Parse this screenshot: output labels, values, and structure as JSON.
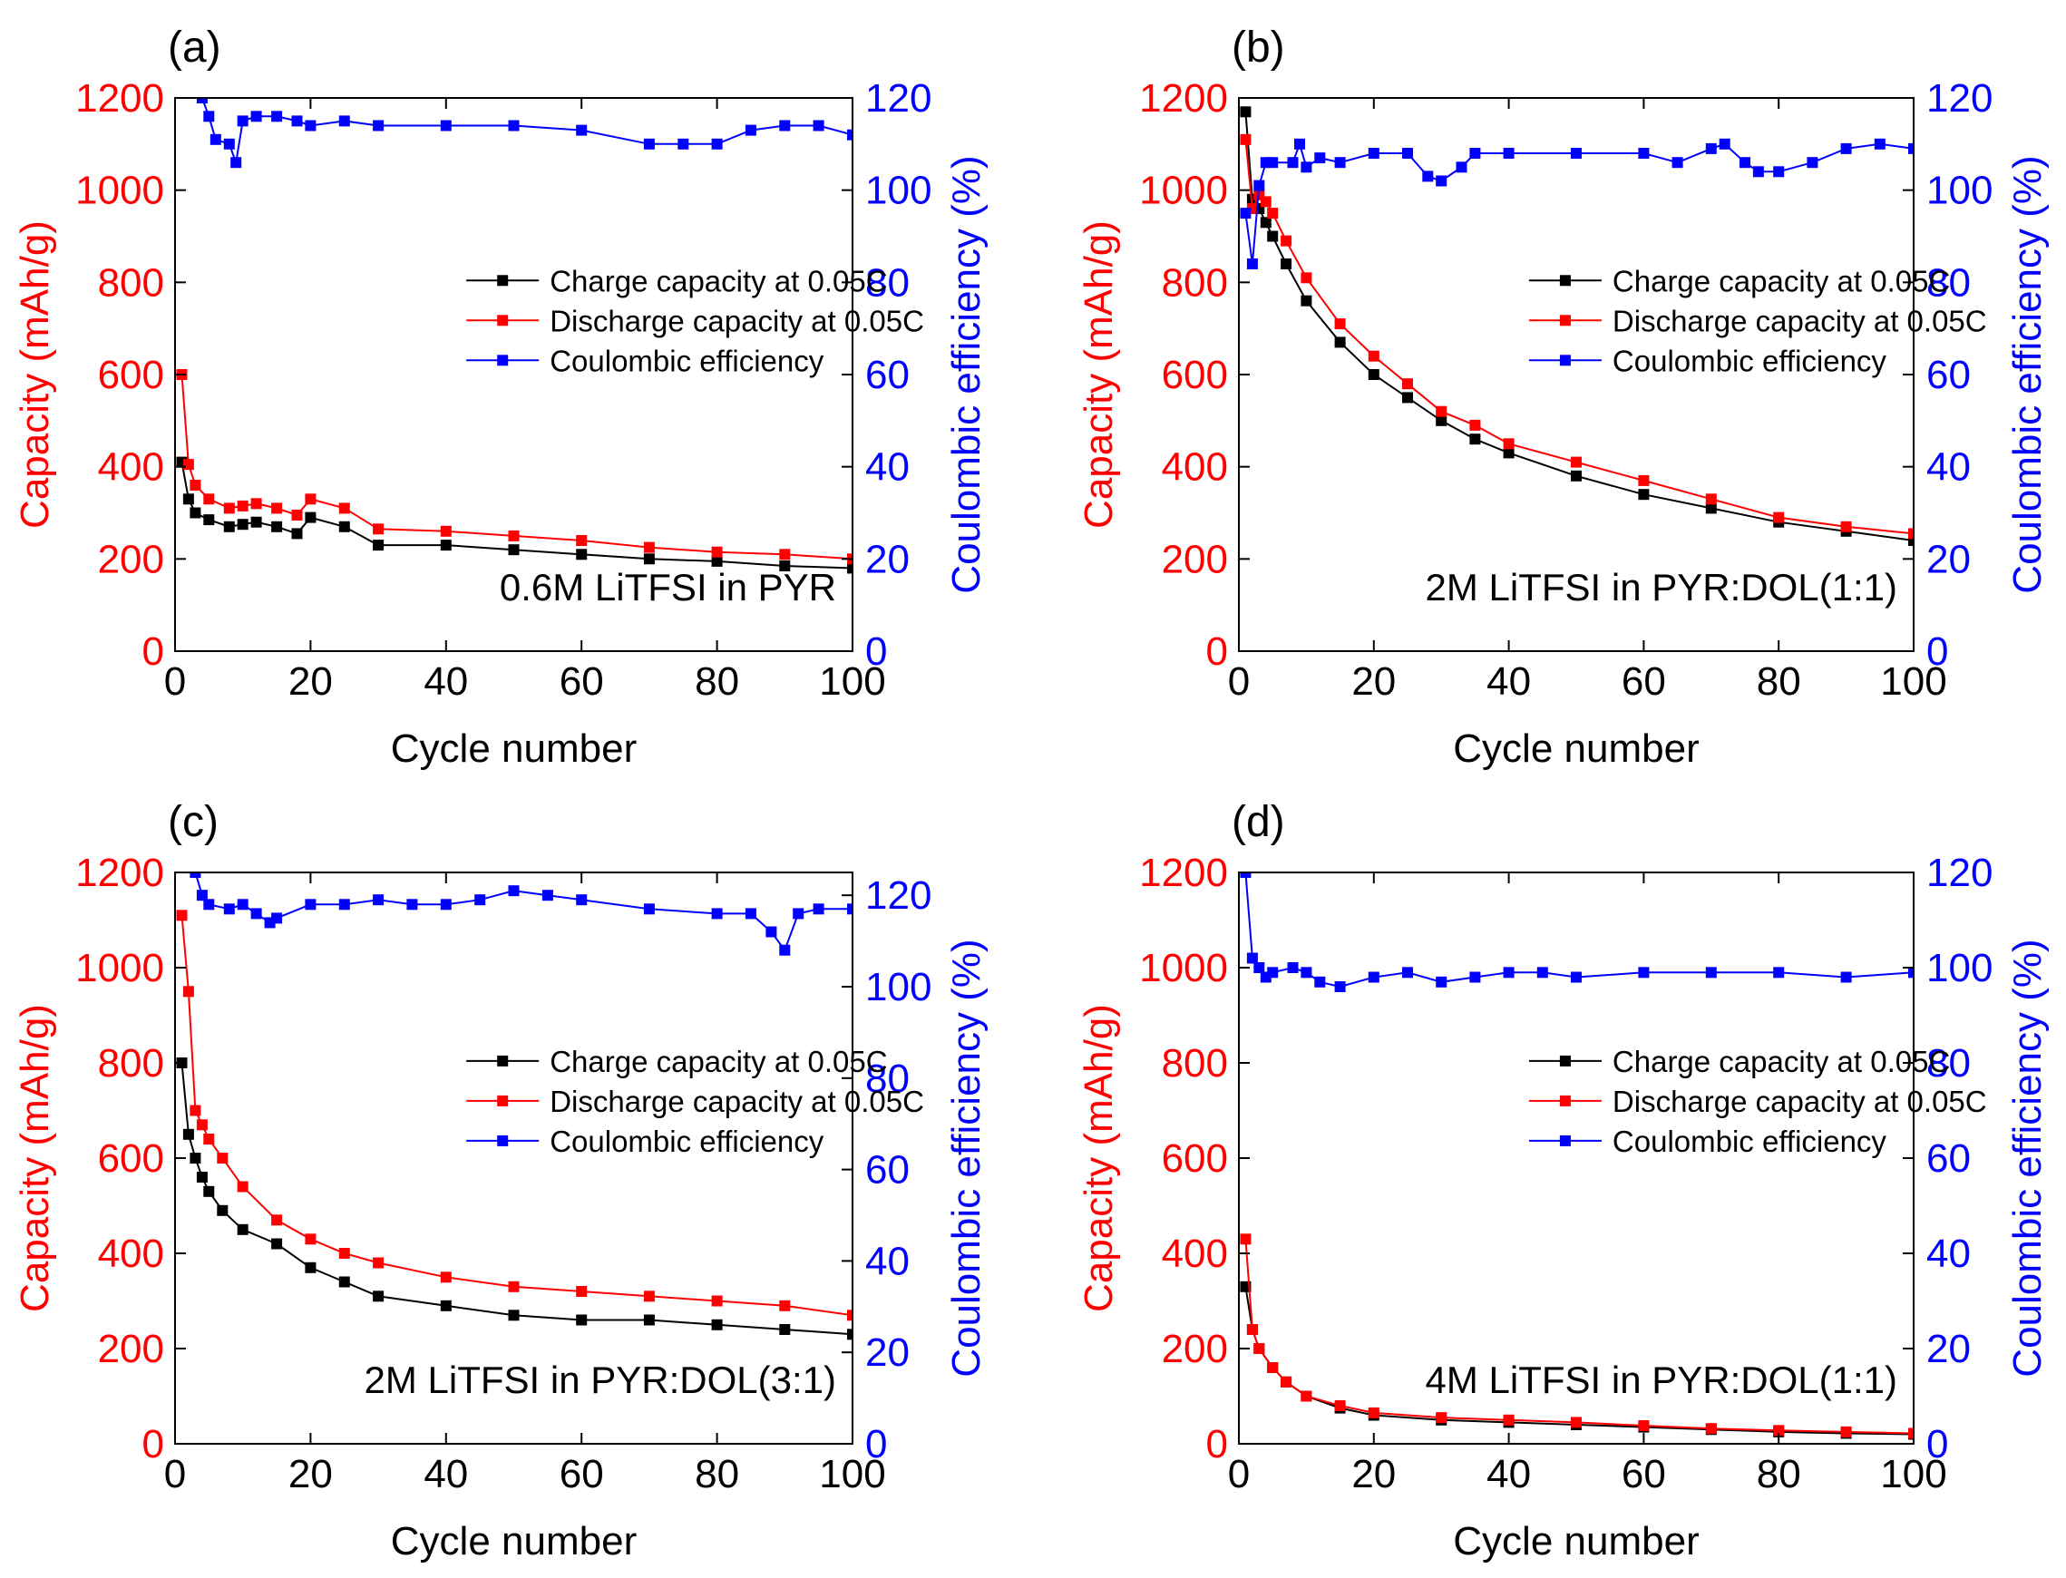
{
  "figure": {
    "colors": {
      "charge": "#000000",
      "discharge": "#ff0000",
      "ce": "#0000ff",
      "axis": "#000000",
      "leftAxis": "#ff0000",
      "rightAxis": "#0000ff"
    }
  },
  "chart_data": [
    {
      "type": "line",
      "panel_label": "(a)",
      "annotation": "0.6M LiTFSI in PYR",
      "xlabel": "Cycle number",
      "ylabel_left": "Capacity (mAh/g)",
      "ylabel_right": "Coulombic efficiency (%)",
      "xlim": [
        0,
        100
      ],
      "ylim_left": [
        0,
        1200
      ],
      "ylim_right": [
        0,
        120
      ],
      "xticks": [
        "0",
        "20",
        "40",
        "60",
        "80",
        "100"
      ],
      "yticks_left": [
        "0",
        "200",
        "400",
        "600",
        "800",
        "1000",
        "1200"
      ],
      "yticks_right": [
        "0",
        "20",
        "40",
        "60",
        "80",
        "100",
        "120"
      ],
      "legend": [
        "Charge capacity at 0.05C",
        "Discharge capacity at 0.05C",
        "Coulombic efficiency"
      ],
      "legend_position": "center-right",
      "series": [
        {
          "name": "Charge capacity at 0.05C",
          "axis": "left",
          "x": [
            1,
            2,
            3,
            5,
            8,
            10,
            12,
            15,
            18,
            20,
            25,
            30,
            40,
            50,
            60,
            70,
            80,
            90,
            100
          ],
          "values": [
            410,
            330,
            300,
            285,
            270,
            275,
            280,
            270,
            255,
            290,
            270,
            230,
            230,
            220,
            210,
            200,
            195,
            185,
            180
          ]
        },
        {
          "name": "Discharge capacity at 0.05C",
          "axis": "left",
          "x": [
            1,
            2,
            3,
            5,
            8,
            10,
            12,
            15,
            18,
            20,
            25,
            30,
            40,
            50,
            60,
            70,
            80,
            90,
            100
          ],
          "values": [
            600,
            405,
            360,
            330,
            310,
            315,
            320,
            310,
            295,
            330,
            310,
            265,
            260,
            250,
            240,
            225,
            215,
            210,
            200
          ]
        },
        {
          "name": "Coulombic efficiency",
          "axis": "right",
          "x": [
            4,
            5,
            6,
            8,
            9,
            10,
            12,
            15,
            18,
            20,
            25,
            30,
            40,
            50,
            60,
            70,
            75,
            80,
            85,
            90,
            95,
            100
          ],
          "values": [
            120,
            116,
            111,
            110,
            106,
            115,
            116,
            116,
            115,
            114,
            115,
            114,
            114,
            114,
            113,
            110,
            110,
            110,
            113,
            114,
            114,
            112
          ]
        }
      ]
    },
    {
      "type": "line",
      "panel_label": "(b)",
      "annotation": "2M LiTFSI in PYR:DOL(1:1)",
      "xlabel": "Cycle number",
      "ylabel_left": "Capacity (mAh/g)",
      "ylabel_right": "Coulombic efficiency (%)",
      "xlim": [
        0,
        100
      ],
      "ylim_left": [
        0,
        1200
      ],
      "ylim_right": [
        0,
        120
      ],
      "xticks": [
        "0",
        "20",
        "40",
        "60",
        "80",
        "100"
      ],
      "yticks_left": [
        "0",
        "200",
        "400",
        "600",
        "800",
        "1000",
        "1200"
      ],
      "yticks_right": [
        "0",
        "20",
        "40",
        "60",
        "80",
        "100",
        "120"
      ],
      "legend": [
        "Charge capacity at 0.05C",
        "Discharge capacity at 0.05C",
        "Coulombic efficiency"
      ],
      "legend_position": "center-right",
      "series": [
        {
          "name": "Charge capacity at 0.05C",
          "axis": "left",
          "x": [
            1,
            2,
            3,
            4,
            5,
            7,
            10,
            15,
            20,
            25,
            30,
            35,
            40,
            50,
            60,
            70,
            80,
            90,
            100
          ],
          "values": [
            1170,
            980,
            960,
            930,
            900,
            840,
            760,
            670,
            600,
            550,
            500,
            460,
            430,
            380,
            340,
            310,
            280,
            260,
            240
          ]
        },
        {
          "name": "Discharge capacity at 0.05C",
          "axis": "left",
          "x": [
            1,
            2,
            3,
            4,
            5,
            7,
            10,
            15,
            20,
            25,
            30,
            35,
            40,
            50,
            60,
            70,
            80,
            90,
            100
          ],
          "values": [
            1110,
            960,
            990,
            975,
            950,
            890,
            810,
            710,
            640,
            580,
            520,
            490,
            450,
            410,
            370,
            330,
            290,
            270,
            255
          ]
        },
        {
          "name": "Coulombic efficiency",
          "axis": "right",
          "x": [
            1,
            2,
            3,
            4,
            5,
            8,
            9,
            10,
            12,
            15,
            20,
            25,
            28,
            30,
            33,
            35,
            40,
            50,
            60,
            65,
            70,
            72,
            75,
            77,
            80,
            85,
            90,
            95,
            100
          ],
          "values": [
            95,
            84,
            101,
            106,
            106,
            106,
            110,
            105,
            107,
            106,
            108,
            108,
            103,
            102,
            105,
            108,
            108,
            108,
            108,
            106,
            109,
            110,
            106,
            104,
            104,
            106,
            109,
            110,
            109
          ]
        }
      ]
    },
    {
      "type": "line",
      "panel_label": "(c)",
      "annotation": "2M LiTFSI in PYR:DOL(3:1)",
      "xlabel": "Cycle number",
      "ylabel_left": "Capacity (mAh/g)",
      "ylabel_right": "Coulombic efficiency (%)",
      "xlim": [
        0,
        100
      ],
      "ylim_left": [
        0,
        1200
      ],
      "ylim_right": [
        0,
        125
      ],
      "xticks": [
        "0",
        "20",
        "40",
        "60",
        "80",
        "100"
      ],
      "yticks_left": [
        "0",
        "200",
        "400",
        "600",
        "800",
        "1000",
        "1200"
      ],
      "yticks_right": [
        "0",
        "20",
        "40",
        "60",
        "80",
        "100",
        "120"
      ],
      "legend": [
        "Charge capacity at 0.05C",
        "Discharge capacity at 0.05C",
        "Coulombic efficiency"
      ],
      "legend_position": "center-right",
      "series": [
        {
          "name": "Charge capacity at 0.05C",
          "axis": "left",
          "x": [
            1,
            2,
            3,
            4,
            5,
            7,
            10,
            15,
            20,
            25,
            30,
            40,
            50,
            60,
            70,
            80,
            90,
            100
          ],
          "values": [
            800,
            650,
            600,
            560,
            530,
            490,
            450,
            420,
            370,
            340,
            310,
            290,
            270,
            260,
            260,
            250,
            240,
            230
          ]
        },
        {
          "name": "Discharge capacity at 0.05C",
          "axis": "left",
          "x": [
            1,
            2,
            3,
            4,
            5,
            7,
            10,
            15,
            20,
            25,
            30,
            40,
            50,
            60,
            70,
            80,
            90,
            100
          ],
          "values": [
            1110,
            950,
            700,
            670,
            640,
            600,
            540,
            470,
            430,
            400,
            380,
            350,
            330,
            320,
            310,
            300,
            290,
            270
          ]
        },
        {
          "name": "Coulombic efficiency",
          "axis": "right",
          "x": [
            3,
            4,
            5,
            8,
            10,
            12,
            14,
            15,
            20,
            25,
            30,
            35,
            40,
            45,
            50,
            55,
            60,
            70,
            80,
            85,
            88,
            90,
            92,
            95,
            100
          ],
          "values": [
            125,
            120,
            118,
            117,
            118,
            116,
            114,
            115,
            118,
            118,
            119,
            118,
            118,
            119,
            121,
            120,
            119,
            117,
            116,
            116,
            112,
            108,
            116,
            117,
            117
          ]
        }
      ]
    },
    {
      "type": "line",
      "panel_label": "(d)",
      "annotation": "4M LiTFSI in PYR:DOL(1:1)",
      "xlabel": "Cycle number",
      "ylabel_left": "Capacity (mAh/g)",
      "ylabel_right": "Coulombic efficiency (%)",
      "xlim": [
        0,
        100
      ],
      "ylim_left": [
        0,
        1200
      ],
      "ylim_right": [
        0,
        120
      ],
      "xticks": [
        "0",
        "20",
        "40",
        "60",
        "80",
        "100"
      ],
      "yticks_left": [
        "0",
        "200",
        "400",
        "600",
        "800",
        "1000",
        "1200"
      ],
      "yticks_right": [
        "0",
        "20",
        "40",
        "60",
        "80",
        "100",
        "120"
      ],
      "legend": [
        "Charge capacity at 0.05C",
        "Discharge capacity at 0.05C",
        "Coulombic efficiency"
      ],
      "legend_position": "center-right",
      "series": [
        {
          "name": "Charge capacity at 0.05C",
          "axis": "left",
          "x": [
            1,
            2,
            3,
            5,
            7,
            10,
            15,
            20,
            30,
            40,
            50,
            60,
            70,
            80,
            90,
            100
          ],
          "values": [
            330,
            240,
            200,
            160,
            130,
            100,
            75,
            60,
            50,
            45,
            40,
            35,
            30,
            25,
            22,
            20
          ]
        },
        {
          "name": "Discharge capacity at 0.05C",
          "axis": "left",
          "x": [
            1,
            2,
            3,
            5,
            7,
            10,
            15,
            20,
            30,
            40,
            50,
            60,
            70,
            80,
            90,
            100
          ],
          "values": [
            430,
            240,
            200,
            160,
            130,
            100,
            80,
            65,
            55,
            50,
            45,
            38,
            32,
            28,
            25,
            22
          ]
        },
        {
          "name": "Coulombic efficiency",
          "axis": "right",
          "x": [
            1,
            2,
            3,
            4,
            5,
            8,
            10,
            12,
            15,
            20,
            25,
            30,
            35,
            40,
            45,
            50,
            60,
            70,
            80,
            90,
            100
          ],
          "values": [
            120,
            102,
            100,
            98,
            99,
            100,
            99,
            97,
            96,
            98,
            99,
            97,
            98,
            99,
            99,
            98,
            99,
            99,
            99,
            98,
            99
          ]
        }
      ]
    }
  ]
}
